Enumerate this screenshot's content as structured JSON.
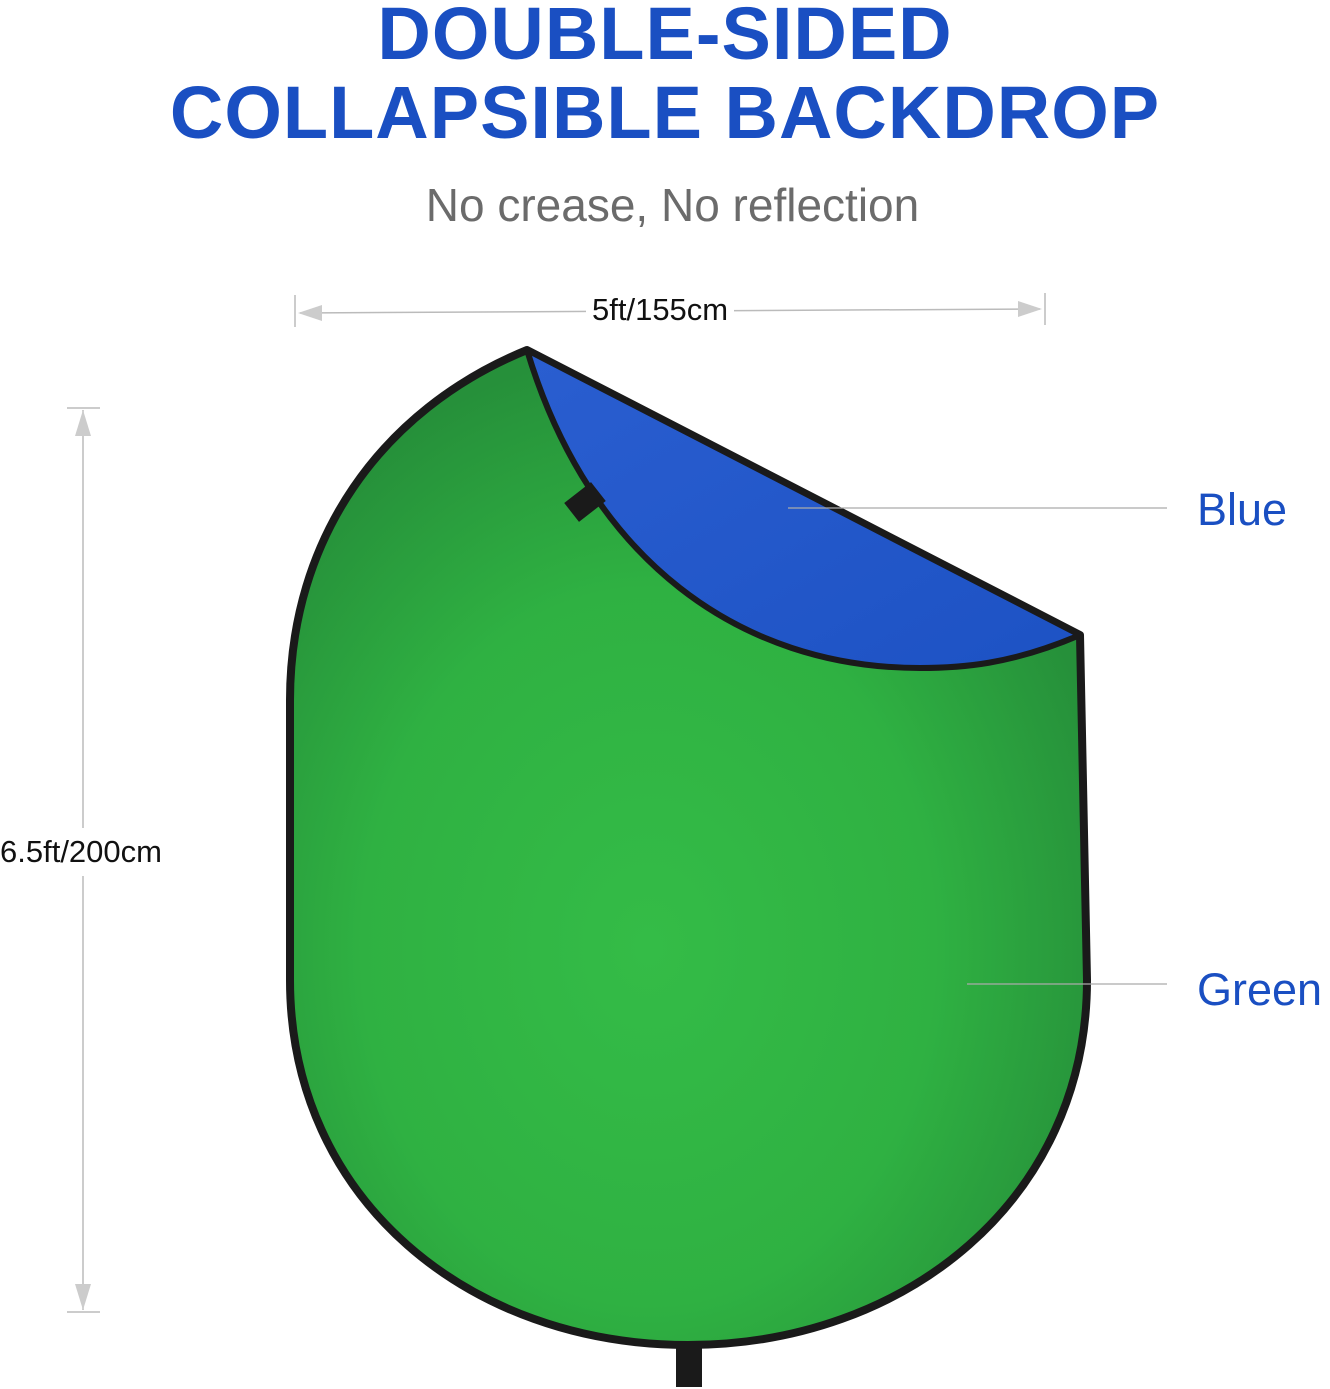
{
  "title_line1": "DOUBLE-SIDED",
  "title_line2": "COLLAPSIBLE BACKDROP",
  "subtitle": "No crease, No reflection",
  "width_label": "5ft/155cm",
  "height_label": "6.5ft/200cm",
  "sides": [
    {
      "label": "Blue",
      "color": "#1f55c8"
    },
    {
      "label": "Green",
      "color": "#2fb544"
    }
  ],
  "accent_color": "#1a4fc2"
}
